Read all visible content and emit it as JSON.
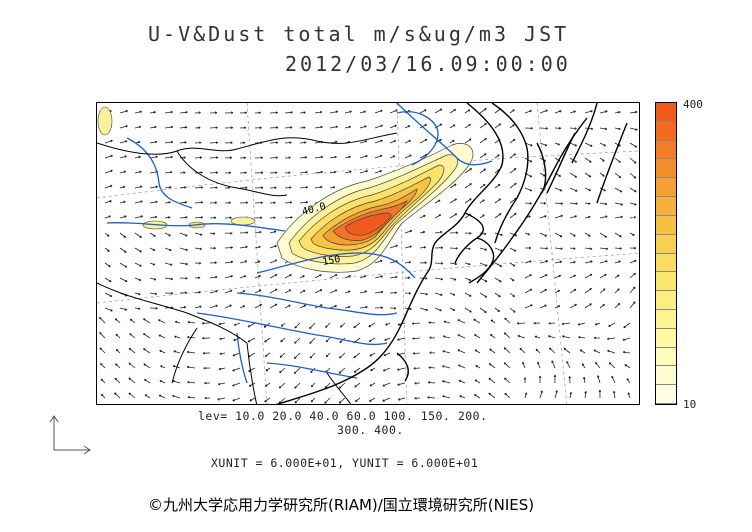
{
  "title": {
    "line1": "U-V&Dust total m/s&ug/m3 JST",
    "line2": "2012/03/16.09:00:00"
  },
  "colorbar": {
    "max_label": "400",
    "min_label": "10",
    "colors": [
      "#f25a1a",
      "#f36b1f",
      "#f47c25",
      "#f58d2b",
      "#f69f33",
      "#f7b03b",
      "#f8c043",
      "#f9cf4f",
      "#fadc5e",
      "#fbe66e",
      "#fcee80",
      "#fdf493",
      "#fef8a7",
      "#fefbbb",
      "#fffdcf",
      "#fffee2"
    ]
  },
  "levels": {
    "line1": "lev= 10.0 20.0 40.0 60.0 100. 150. 200.",
    "line2": "300. 400."
  },
  "units": "XUNIT = 6.000E+01, YUNIT = 6.000E+01",
  "contour_labels": [
    "40.0",
    "150"
  ],
  "copyright": "©九州大学応用力学研究所(RIAM)/国立環境研究所(NIES)"
}
